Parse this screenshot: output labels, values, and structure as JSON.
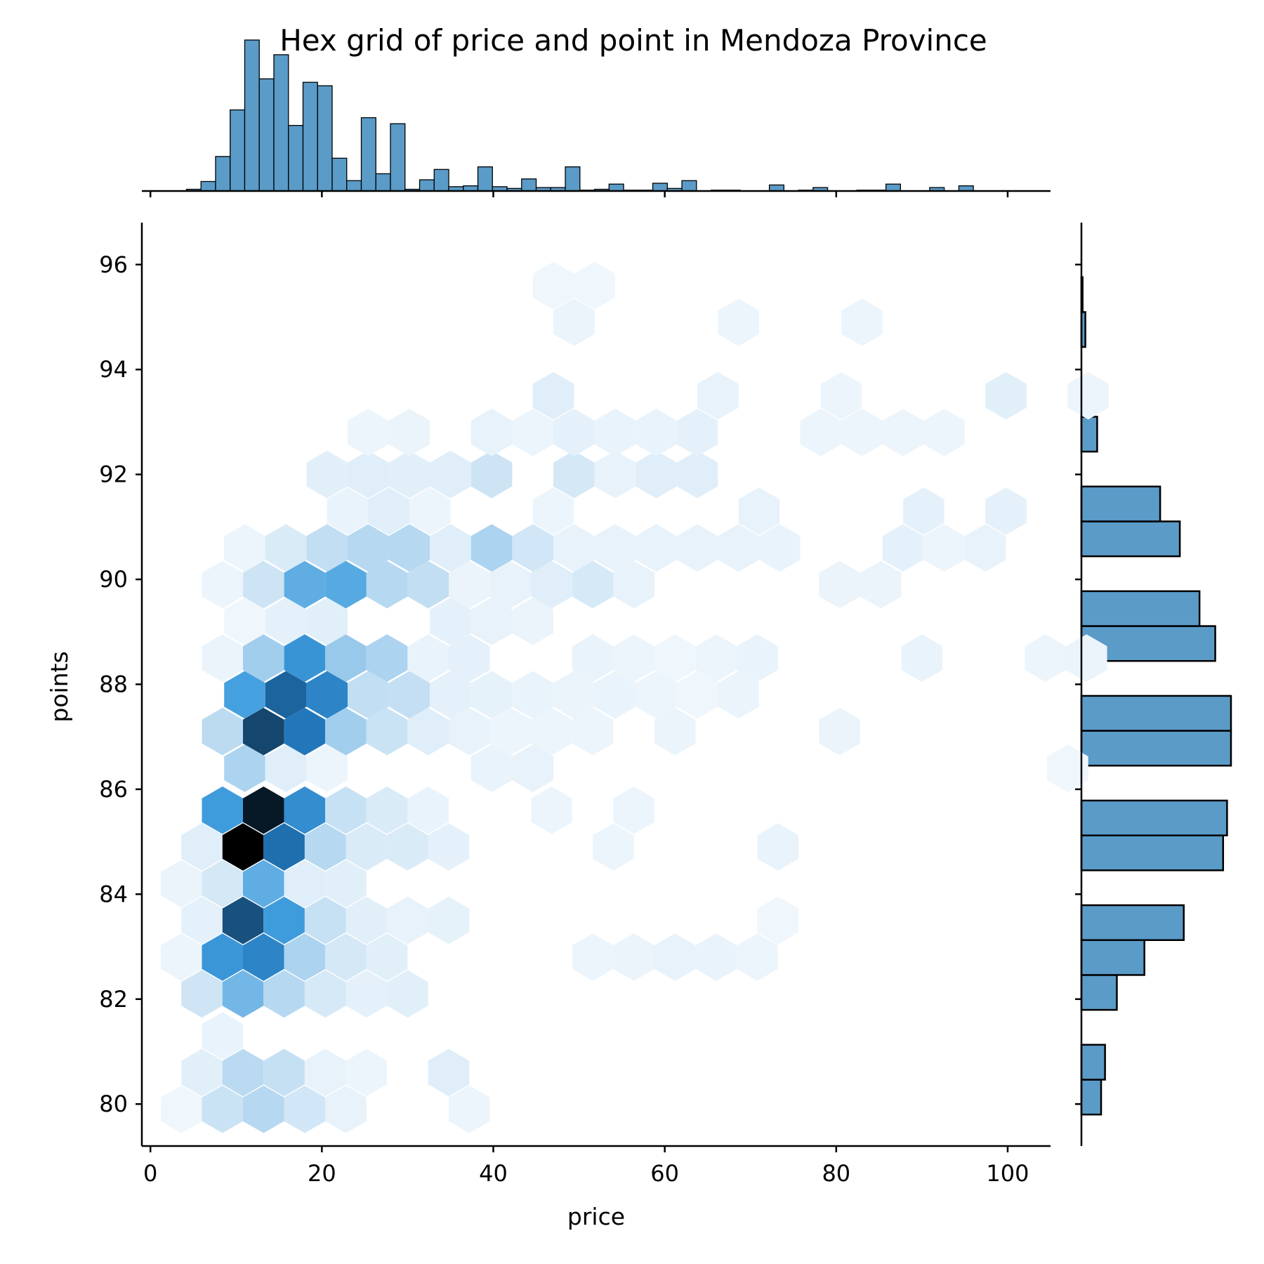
{
  "chart_data": {
    "type": "heatmap",
    "title": "Hex grid of price and point in Mendoza Province",
    "xlabel": "price",
    "ylabel": "points",
    "xlim": [
      -1,
      105
    ],
    "ylim": [
      79.2,
      96.8
    ],
    "xticks": [
      0,
      20,
      40,
      60,
      80,
      100
    ],
    "yticks": [
      80,
      82,
      84,
      86,
      88,
      90,
      92,
      94,
      96
    ],
    "grid": false,
    "legend": "none",
    "colors": {
      "hist": "#5a9bc8",
      "hist_edge": "#000000",
      "hex_max": "#000000",
      "hex_mid": "#2785d0",
      "hex_low": "#f4f9fd"
    },
    "hexbin": {
      "x_step": 4.8,
      "y_step": 0.72,
      "odd_row_offset": 2.4,
      "x0": 3.6,
      "y0": 79.9,
      "rows": [
        {
          "y": 79.9,
          "x_start": 3.6,
          "counts": [
            2,
            28,
            45,
            22,
            6,
            0,
            0,
            3
          ]
        },
        {
          "y": 80.6,
          "x_start": 6.0,
          "counts": [
            10,
            42,
            32,
            6,
            3,
            0,
            12
          ]
        },
        {
          "y": 81.3,
          "x_start": 8.4,
          "counts": [
            5,
            0
          ]
        },
        {
          "y": 82.1,
          "x_start": 6.0,
          "counts": [
            24,
            80,
            45,
            18,
            8,
            10
          ]
        },
        {
          "y": 82.8,
          "x_start": 3.6,
          "counts": [
            3,
            118,
            140,
            50,
            20,
            10,
            0,
            0,
            0,
            0,
            3,
            4,
            6,
            5,
            3
          ]
        },
        {
          "y": 83.5,
          "x_start": 6.0,
          "counts": [
            8,
            200,
            110,
            30,
            10,
            6,
            7,
            0,
            0,
            0,
            0,
            0,
            0,
            0,
            2
          ]
        },
        {
          "y": 84.2,
          "x_start": 3.6,
          "counts": [
            4,
            20,
            90,
            12,
            10,
            0,
            0,
            0,
            0,
            0,
            0,
            0,
            0,
            0,
            0
          ]
        },
        {
          "y": 84.9,
          "x_start": 6.0,
          "counts": [
            12,
            256,
            170,
            45,
            15,
            15,
            8,
            0,
            0,
            0,
            3,
            0,
            0,
            0,
            5
          ]
        },
        {
          "y": 85.6,
          "x_start": 8.4,
          "counts": [
            110,
            240,
            130,
            30,
            15,
            5,
            0,
            0,
            3,
            0,
            3
          ]
        },
        {
          "y": 86.4,
          "x_start": 11.0,
          "counts": [
            50,
            12,
            3,
            0,
            0,
            0,
            5,
            6,
            0,
            0,
            0,
            0,
            0,
            0,
            0,
            0,
            0,
            0,
            0,
            0,
            2
          ]
        },
        {
          "y": 87.1,
          "x_start": 8.4,
          "counts": [
            40,
            210,
            160,
            55,
            28,
            12,
            6,
            3,
            3,
            3,
            0,
            4,
            0,
            0,
            0,
            4
          ]
        },
        {
          "y": 87.8,
          "x_start": 11.0,
          "counts": [
            105,
            180,
            140,
            35,
            33,
            8,
            7,
            5,
            4,
            5,
            3,
            2,
            4
          ]
        },
        {
          "y": 88.5,
          "x_start": 8.4,
          "counts": [
            4,
            55,
            120,
            60,
            50,
            5,
            8,
            0,
            0,
            5,
            3,
            2,
            3,
            5,
            0,
            0,
            0,
            5,
            0,
            0,
            3,
            4
          ]
        },
        {
          "y": 89.2,
          "x_start": 11.0,
          "counts": [
            2,
            8,
            10,
            0,
            0,
            8,
            6,
            4
          ]
        },
        {
          "y": 89.9,
          "x_start": 8.4,
          "counts": [
            3,
            25,
            90,
            95,
            45,
            35,
            4,
            6,
            12,
            18,
            6,
            0,
            0,
            0,
            0,
            4,
            4
          ]
        },
        {
          "y": 90.6,
          "x_start": 11.0,
          "counts": [
            3,
            15,
            35,
            45,
            45,
            12,
            50,
            22,
            6,
            6,
            6,
            6,
            6,
            5,
            0,
            0,
            8,
            3,
            6
          ]
        },
        {
          "y": 91.3,
          "x_start": 23.0,
          "counts": [
            5,
            12,
            3,
            0,
            0,
            3,
            0,
            0,
            0,
            0,
            6,
            0,
            0,
            0,
            8,
            0,
            8
          ]
        },
        {
          "y": 92.0,
          "x_start": 15.8,
          "counts": [
            0,
            10,
            12,
            10,
            12,
            25,
            0,
            20,
            6,
            12,
            12,
            0
          ]
        },
        {
          "y": 92.8,
          "x_start": 25.4,
          "counts": [
            3,
            4,
            0,
            6,
            3,
            8,
            5,
            5,
            8,
            0,
            0,
            3,
            3,
            3,
            3
          ]
        },
        {
          "y": 93.5,
          "x_start": 47.0,
          "counts": [
            12,
            0,
            0,
            0,
            6,
            0,
            0,
            3,
            0,
            0,
            0,
            10,
            0,
            3
          ]
        },
        {
          "y": 94.2,
          "x_start": 51.8,
          "counts": [
            0
          ]
        },
        {
          "y": 94.9,
          "x_start": 49.4,
          "counts": [
            4,
            0,
            0,
            0,
            3,
            0,
            0,
            3
          ]
        },
        {
          "y": 95.6,
          "x_start": 47.0,
          "counts": [
            2,
            2
          ]
        }
      ]
    },
    "marginal_x": {
      "bin_width": 1.7,
      "bin_start": 4.2,
      "heights": [
        2,
        11,
        40,
        94,
        175,
        130,
        158,
        76,
        126,
        122,
        38,
        12,
        85,
        20,
        78,
        2,
        13,
        25,
        5,
        6,
        28,
        5,
        3,
        14,
        4,
        4,
        28,
        1,
        2,
        8,
        1,
        1,
        9,
        3,
        12,
        0,
        1,
        1,
        0,
        0,
        7,
        0,
        1,
        4,
        0,
        0,
        1,
        1,
        8,
        0,
        0,
        4,
        0,
        6
      ]
    },
    "marginal_y": {
      "bin_height": 0.665,
      "bin_start": 79.8,
      "widths": [
        5,
        6,
        0,
        9,
        16,
        26,
        0,
        36,
        37,
        0,
        38,
        38,
        0,
        34,
        30,
        0,
        25,
        20,
        0,
        4,
        2,
        0,
        1,
        0.3
      ]
    }
  }
}
